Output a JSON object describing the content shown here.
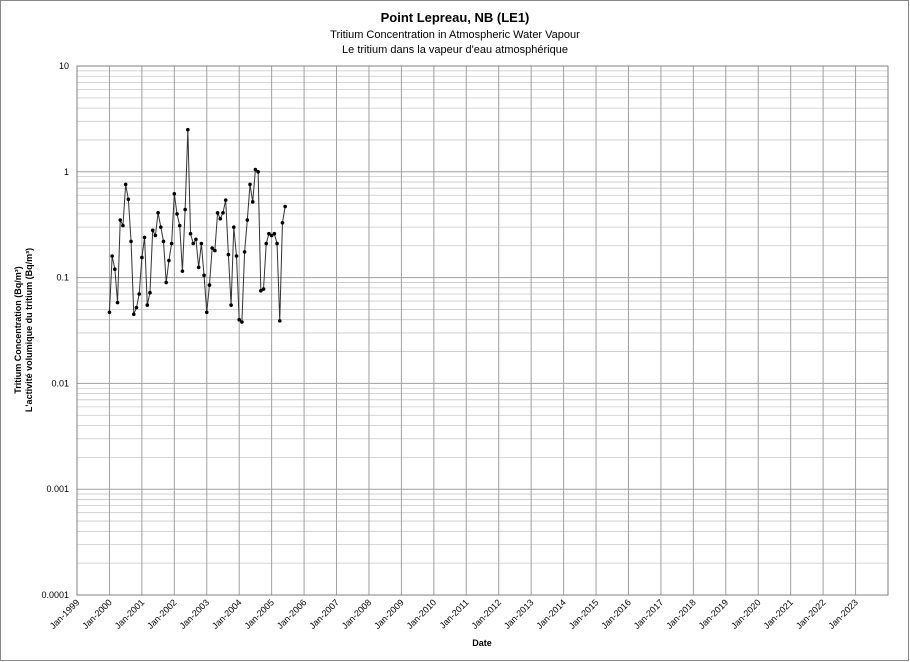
{
  "chart_data": {
    "type": "line",
    "title": "Point Lepreau, NB (LE1)",
    "subtitle": [
      "Tritium Concentration in Atmospheric Water Vapour",
      "Le tritium dans la vapeur d'eau atmosphérique"
    ],
    "ylabel": [
      "Tritium Concentration (Bq/m³)",
      "L'activité volumique du tritium (Bq/m³)"
    ],
    "xlabel": "Date",
    "log_y": true,
    "grid": true,
    "minor_grid": true,
    "color": "#000000",
    "line_color": "#333333",
    "xlim": [
      "1999-01",
      "2024-01"
    ],
    "ylim": [
      0.0001,
      10
    ],
    "yticks": [
      0.0001,
      0.001,
      0.01,
      0.1,
      1,
      10
    ],
    "xticks": [
      {
        "value": "1999-01",
        "label": "Jan-1999"
      },
      {
        "value": "2000-01",
        "label": "Jan-2000"
      },
      {
        "value": "2001-01",
        "label": "Jan-2001"
      },
      {
        "value": "2002-01",
        "label": "Jan-2002"
      },
      {
        "value": "2003-01",
        "label": "Jan-2003"
      },
      {
        "value": "2004-01",
        "label": "Jan-2004"
      },
      {
        "value": "2005-01",
        "label": "Jan-2005"
      },
      {
        "value": "2006-01",
        "label": "Jan-2006"
      },
      {
        "value": "2007-01",
        "label": "Jan-2007"
      },
      {
        "value": "2008-01",
        "label": "Jan-2008"
      },
      {
        "value": "2009-01",
        "label": "Jan-2009"
      },
      {
        "value": "2010-01",
        "label": "Jan-2010"
      },
      {
        "value": "2011-01",
        "label": "Jan-2011"
      },
      {
        "value": "2012-01",
        "label": "Jan-2012"
      },
      {
        "value": "2013-01",
        "label": "Jan-2013"
      },
      {
        "value": "2014-01",
        "label": "Jan-2014"
      },
      {
        "value": "2015-01",
        "label": "Jan-2015"
      },
      {
        "value": "2016-01",
        "label": "Jan-2016"
      },
      {
        "value": "2017-01",
        "label": "Jan-2017"
      },
      {
        "value": "2018-01",
        "label": "Jan-2018"
      },
      {
        "value": "2019-01",
        "label": "Jan-2019"
      },
      {
        "value": "2020-01",
        "label": "Jan-2020"
      },
      {
        "value": "2021-01",
        "label": "Jan-2021"
      },
      {
        "value": "2022-01",
        "label": "Jan-2022"
      },
      {
        "value": "2023-01",
        "label": "Jan-2023"
      }
    ],
    "x": [
      "2000-01",
      "2000-02",
      "2000-03",
      "2000-04",
      "2000-05",
      "2000-06",
      "2000-07",
      "2000-08",
      "2000-09",
      "2000-10",
      "2000-11",
      "2000-12",
      "2001-01",
      "2001-02",
      "2001-03",
      "2001-04",
      "2001-05",
      "2001-06",
      "2001-07",
      "2001-08",
      "2001-09",
      "2001-10",
      "2001-11",
      "2001-12",
      "2002-01",
      "2002-02",
      "2002-03",
      "2002-04",
      "2002-05",
      "2002-06",
      "2002-07",
      "2002-08",
      "2002-09",
      "2002-10",
      "2002-11",
      "2002-12",
      "2003-01",
      "2003-02",
      "2003-03",
      "2003-04",
      "2003-05",
      "2003-06",
      "2003-07",
      "2003-08",
      "2003-09",
      "2003-10",
      "2003-11",
      "2003-12",
      "2004-01",
      "2004-02",
      "2004-03",
      "2004-04",
      "2004-05",
      "2004-06",
      "2004-07",
      "2004-08",
      "2004-09",
      "2004-10",
      "2004-11",
      "2004-12",
      "2005-01",
      "2005-02",
      "2005-03",
      "2005-04",
      "2005-05",
      "2005-06"
    ],
    "values": [
      0.047,
      0.16,
      0.12,
      0.058,
      0.35,
      0.31,
      0.76,
      0.55,
      0.22,
      0.045,
      0.052,
      0.07,
      0.155,
      0.24,
      0.055,
      0.072,
      0.28,
      0.25,
      0.41,
      0.3,
      0.22,
      0.09,
      0.145,
      0.21,
      0.62,
      0.4,
      0.31,
      0.115,
      0.44,
      2.5,
      0.26,
      0.21,
      0.23,
      0.125,
      0.21,
      0.105,
      0.047,
      0.085,
      0.19,
      0.18,
      0.41,
      0.36,
      0.41,
      0.54,
      0.165,
      0.055,
      0.3,
      0.16,
      0.04,
      0.038,
      0.175,
      0.35,
      0.76,
      0.52,
      1.05,
      1.0,
      0.075,
      0.078,
      0.21,
      0.26,
      0.25,
      0.26,
      0.21,
      0.039,
      0.33,
      0.47
    ]
  }
}
